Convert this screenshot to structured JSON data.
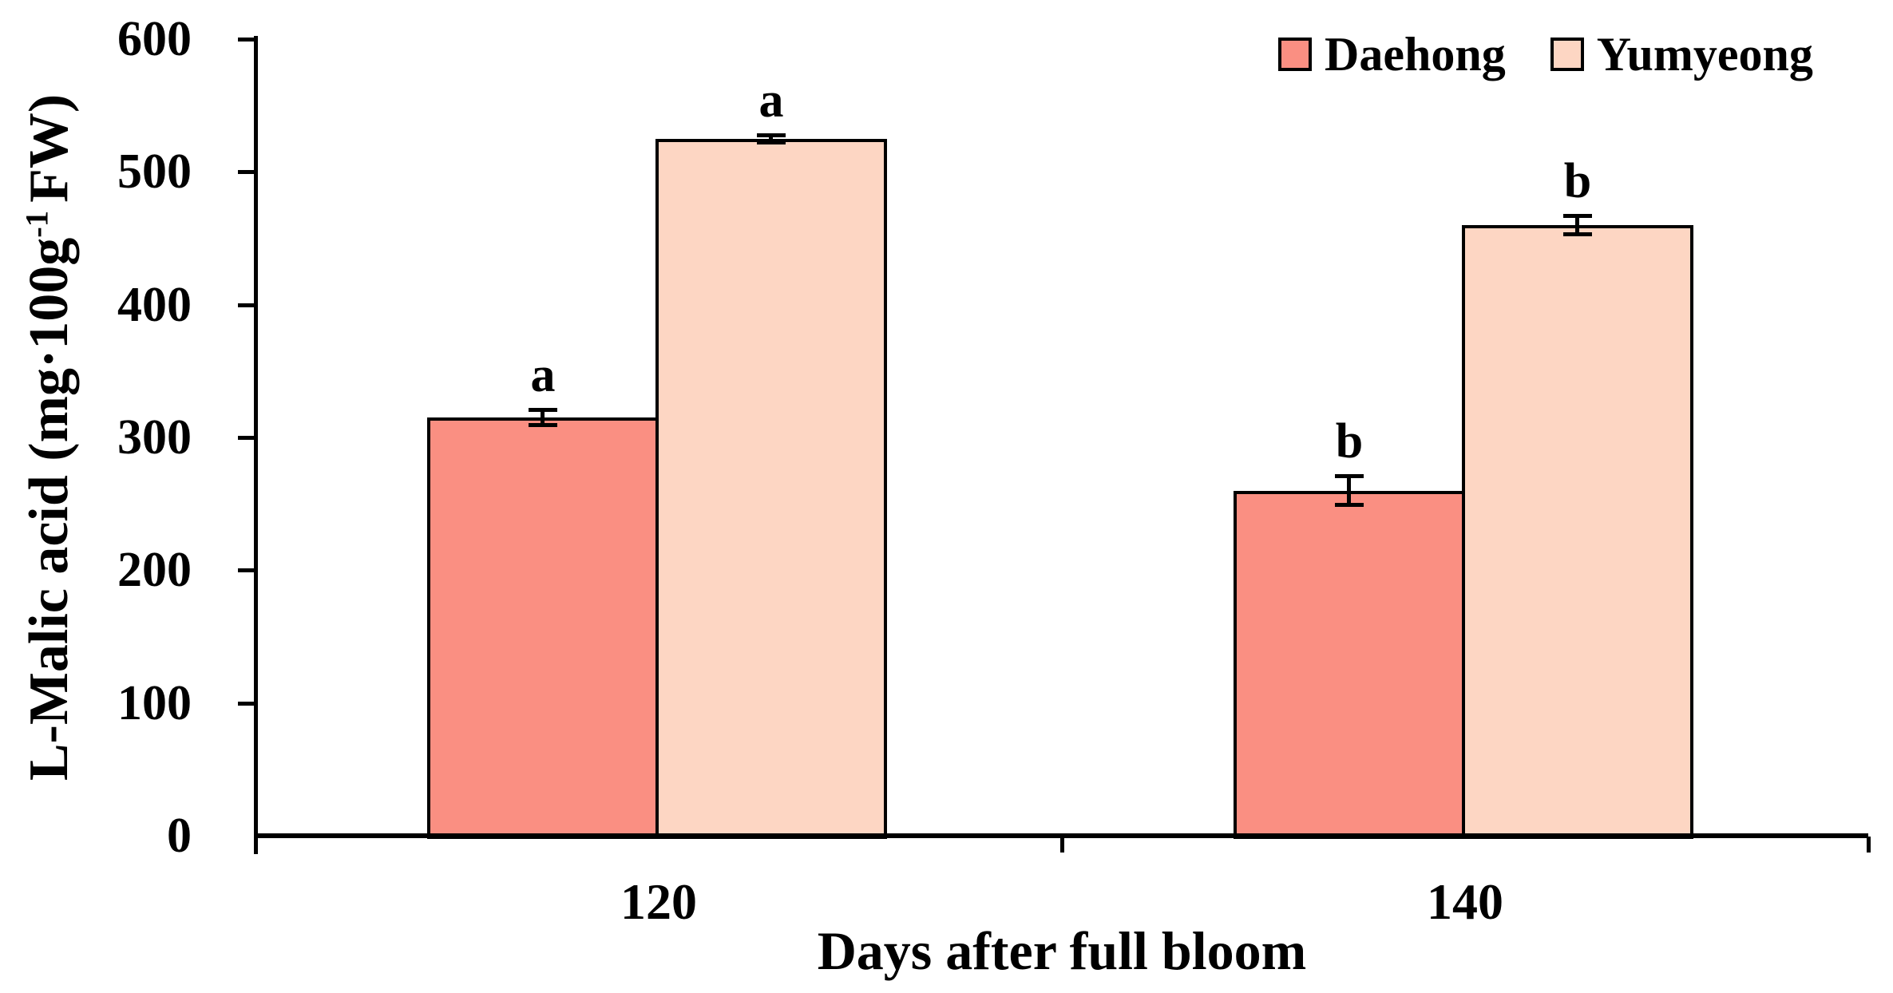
{
  "figure": {
    "background": "#ffffff",
    "text_color": "#000000",
    "axis_color": "#000000",
    "yaxis_title": {
      "main": "L-Malic acid (mg·100g",
      "sup": "-1",
      "tail": "FW)"
    }
  },
  "chart_data": {
    "type": "bar",
    "title": "",
    "categories": [
      "120",
      "140"
    ],
    "series": [
      {
        "name": "Daehong",
        "color": "#FA8F82",
        "values": [
          315,
          260
        ],
        "errors": [
          6,
          11
        ],
        "sig_letters": [
          "a",
          "b"
        ]
      },
      {
        "name": "Yumyeong",
        "color": "#FDD6C3",
        "values": [
          525,
          460
        ],
        "errors": [
          3,
          7
        ],
        "sig_letters": [
          "a",
          "b"
        ]
      }
    ],
    "xlabel": "Days after full bloom",
    "ylabel": "L-Malic acid (mg·100g⁻¹ FW)",
    "ylim": [
      0,
      600
    ],
    "yticks": [
      0,
      100,
      200,
      300,
      400,
      500,
      600
    ],
    "grid": false,
    "legend_position": "top-right",
    "bar_edge_color": "#000000",
    "error_bar_color": "#000000",
    "error_bar_style": "plus-minus-caps"
  }
}
